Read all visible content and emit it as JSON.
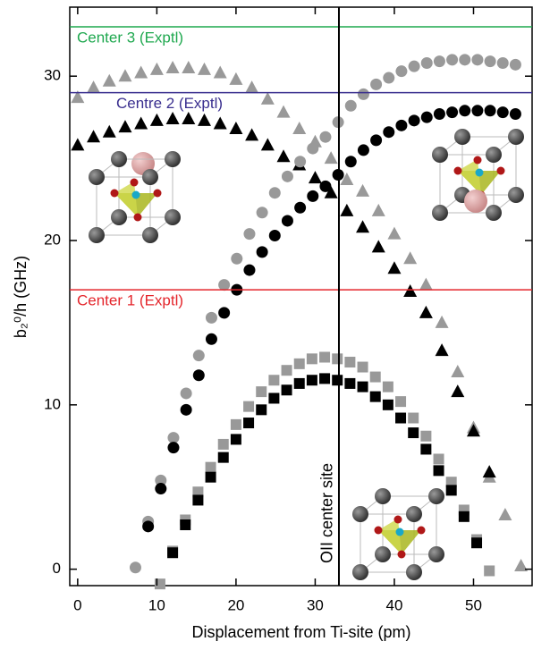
{
  "chart_data": {
    "type": "scatter",
    "xlabel": "Displacement from Ti-site (pm)",
    "ylabel": "b₂⁰/h (GHz)",
    "xlim": [
      -1,
      57.4
    ],
    "ylim": [
      -1,
      34.2
    ],
    "xticks": [
      0,
      10,
      20,
      30,
      40,
      50
    ],
    "yticks": [
      0,
      10,
      20,
      30
    ],
    "hlines": [
      {
        "label": "Center 3 (Exptl)",
        "value": 33.0,
        "color": "#1fa84f"
      },
      {
        "label": "Centre 2 (Exptl)",
        "value": 29.0,
        "color": "#3a2f8f"
      },
      {
        "label": "Center 1 (Exptl)",
        "value": 17.0,
        "color": "#e4262c"
      }
    ],
    "vline": {
      "label": "OII center site",
      "value": 33.0,
      "color": "#000000"
    },
    "series": [
      {
        "marker": "triangle",
        "color": "#999999",
        "x": [
          0,
          2,
          4,
          6,
          8,
          10,
          12,
          14,
          16,
          18,
          20,
          22,
          24,
          26,
          28,
          30,
          32,
          34,
          36,
          38,
          40,
          42,
          44,
          46,
          48,
          50,
          52,
          54,
          56
        ],
        "values": [
          28.7,
          29.3,
          29.7,
          30.0,
          30.2,
          30.4,
          30.5,
          30.5,
          30.4,
          30.2,
          29.8,
          29.3,
          28.6,
          27.8,
          26.8,
          26.0,
          25.0,
          23.7,
          23.0,
          21.8,
          20.4,
          18.9,
          17.3,
          15.0,
          12.0,
          8.6,
          5.6,
          3.3,
          0.2
        ]
      },
      {
        "marker": "triangle",
        "color": "#000000",
        "x": [
          0,
          2,
          4,
          6,
          8,
          10,
          12,
          14,
          16,
          18,
          20,
          22,
          24,
          26,
          28,
          30,
          32,
          34,
          36,
          38,
          40,
          42,
          44,
          46,
          48,
          50,
          52
        ],
        "values": [
          25.8,
          26.3,
          26.6,
          26.9,
          27.1,
          27.3,
          27.4,
          27.4,
          27.3,
          27.1,
          26.8,
          26.4,
          25.8,
          25.1,
          24.6,
          23.8,
          22.9,
          21.8,
          20.8,
          19.6,
          18.3,
          16.9,
          15.6,
          13.3,
          10.8,
          8.4,
          5.9
        ]
      },
      {
        "marker": "circle",
        "color": "#999999",
        "x": [
          7.3,
          8.9,
          10.5,
          12.1,
          13.7,
          15.3,
          16.9,
          18.5,
          20.1,
          21.7,
          23.3,
          24.9,
          26.5,
          28.1,
          29.7,
          31.3,
          32.9,
          34.5,
          36.1,
          37.7,
          39.3,
          40.9,
          42.5,
          44.1,
          45.7,
          47.3,
          48.9,
          50.5,
          52.1,
          53.7,
          55.3
        ],
        "values": [
          0.1,
          2.9,
          5.4,
          8.0,
          10.7,
          13.0,
          15.3,
          17.3,
          18.9,
          20.4,
          21.7,
          22.9,
          23.9,
          24.8,
          25.6,
          26.3,
          27.2,
          28.2,
          28.9,
          29.5,
          29.9,
          30.3,
          30.6,
          30.8,
          30.9,
          31.0,
          31.0,
          31.0,
          30.9,
          30.8,
          30.7
        ]
      },
      {
        "marker": "circle",
        "color": "#000000",
        "x": [
          8.9,
          10.5,
          12.1,
          13.7,
          15.3,
          16.9,
          18.5,
          20.1,
          21.7,
          23.3,
          24.9,
          26.5,
          28.1,
          29.7,
          31.3,
          32.9,
          34.5,
          36.1,
          37.7,
          39.3,
          40.9,
          42.5,
          44.1,
          45.7,
          47.3,
          48.9,
          50.5,
          52.1,
          53.7,
          55.3
        ],
        "values": [
          2.6,
          4.9,
          7.4,
          9.7,
          11.8,
          14.0,
          15.6,
          17.0,
          18.2,
          19.3,
          20.3,
          21.2,
          22.0,
          22.7,
          23.3,
          24.0,
          24.8,
          25.5,
          26.1,
          26.6,
          27.0,
          27.3,
          27.5,
          27.7,
          27.8,
          27.9,
          27.9,
          27.9,
          27.8,
          27.7
        ]
      },
      {
        "marker": "square",
        "color": "#999999",
        "x": [
          10.4,
          12.0,
          13.6,
          15.2,
          16.8,
          18.4,
          20.0,
          21.6,
          23.2,
          24.8,
          26.4,
          28.0,
          29.6,
          31.2,
          32.8,
          34.4,
          36.0,
          37.6,
          39.2,
          40.8,
          42.4,
          44.0,
          45.6,
          47.2,
          48.8,
          50.4,
          52.0
        ],
        "values": [
          -0.9,
          1.1,
          3.0,
          4.7,
          6.2,
          7.6,
          8.8,
          9.9,
          10.8,
          11.5,
          12.1,
          12.5,
          12.8,
          12.9,
          12.8,
          12.6,
          12.3,
          11.7,
          11.1,
          10.2,
          9.2,
          8.1,
          6.7,
          5.3,
          3.6,
          1.8,
          -0.1
        ]
      },
      {
        "marker": "square",
        "color": "#000000",
        "x": [
          12.0,
          13.6,
          15.2,
          16.8,
          18.4,
          20.0,
          21.6,
          23.2,
          24.8,
          26.4,
          28.0,
          29.6,
          31.2,
          32.8,
          34.4,
          36.0,
          37.6,
          39.2,
          40.8,
          42.4,
          44.0,
          45.6,
          47.2,
          48.8,
          50.4
        ],
        "values": [
          1.0,
          2.7,
          4.2,
          5.6,
          6.8,
          7.9,
          8.9,
          9.7,
          10.4,
          10.9,
          11.3,
          11.5,
          11.6,
          11.5,
          11.3,
          11.1,
          10.5,
          10.0,
          9.2,
          8.3,
          7.3,
          6.0,
          4.8,
          3.2,
          1.6
        ]
      }
    ]
  }
}
